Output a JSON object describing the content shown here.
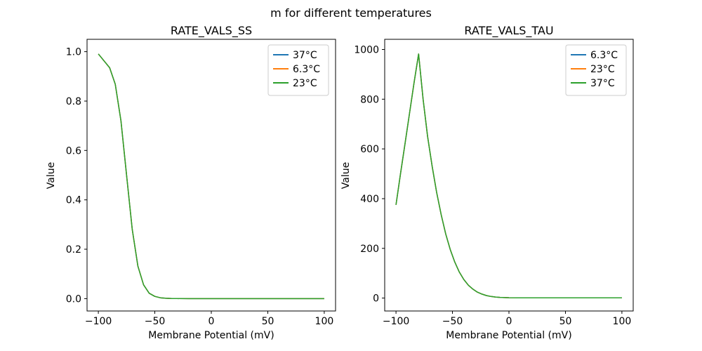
{
  "figure": {
    "title": "m for different temperatures",
    "background": "#ffffff"
  },
  "chart_data": [
    {
      "type": "line",
      "title": "RATE_VALS_SS",
      "xlabel": "Membrane Potential (mV)",
      "ylabel": "Value",
      "xlim": [
        -110,
        110
      ],
      "ylim": [
        -0.05,
        1.05
      ],
      "xticks": [
        -100,
        -50,
        0,
        50,
        100
      ],
      "xtick_labels": [
        "−100",
        "−50",
        "0",
        "50",
        "100"
      ],
      "yticks": [
        0.0,
        0.2,
        0.4,
        0.6,
        0.8,
        1.0
      ],
      "ytick_labels": [
        "0.0",
        "0.2",
        "0.4",
        "0.6",
        "0.8",
        "1.0"
      ],
      "grid": false,
      "legend_loc": "upper right",
      "legend": [
        {
          "label": "37°C",
          "color": "#1f77b4"
        },
        {
          "label": "6.3°C",
          "color": "#ff7f0e"
        },
        {
          "label": "23°C",
          "color": "#2ca02c"
        }
      ],
      "overlapping_series": true,
      "x": [
        -100,
        -90,
        -85,
        -80,
        -75,
        -70,
        -65,
        -60,
        -55,
        -50,
        -45,
        -40,
        -35,
        -30,
        -20,
        -10,
        0,
        50,
        100
      ],
      "series": [
        {
          "name": "37°C",
          "color": "#1f77b4",
          "values": [
            0.991,
            0.935,
            0.868,
            0.72,
            0.5,
            0.28,
            0.132,
            0.056,
            0.022,
            0.009,
            0.0035,
            0.0014,
            0.0006,
            0.0002,
            0,
            0,
            0,
            0,
            0
          ]
        },
        {
          "name": "6.3°C",
          "color": "#ff7f0e",
          "values": [
            0.991,
            0.935,
            0.868,
            0.72,
            0.5,
            0.28,
            0.132,
            0.056,
            0.022,
            0.009,
            0.0035,
            0.0014,
            0.0006,
            0.0002,
            0,
            0,
            0,
            0,
            0
          ]
        },
        {
          "name": "23°C",
          "color": "#2ca02c",
          "values": [
            0.991,
            0.935,
            0.868,
            0.72,
            0.5,
            0.28,
            0.132,
            0.056,
            0.022,
            0.009,
            0.0035,
            0.0014,
            0.0006,
            0.0002,
            0,
            0,
            0,
            0,
            0
          ]
        }
      ]
    },
    {
      "type": "line",
      "title": "RATE_VALS_TAU",
      "xlabel": "Membrane Potential (mV)",
      "ylabel": "Value",
      "xlim": [
        -110,
        110
      ],
      "ylim": [
        -52,
        1041
      ],
      "xticks": [
        -100,
        -50,
        0,
        50,
        100
      ],
      "xtick_labels": [
        "−100",
        "−50",
        "0",
        "50",
        "100"
      ],
      "yticks": [
        0,
        200,
        400,
        600,
        800,
        1000
      ],
      "ytick_labels": [
        "0",
        "200",
        "400",
        "600",
        "800",
        "1000"
      ],
      "grid": false,
      "legend_loc": "upper right",
      "legend": [
        {
          "label": "6.3°C",
          "color": "#1f77b4"
        },
        {
          "label": "23°C",
          "color": "#ff7f0e"
        },
        {
          "label": "37°C",
          "color": "#2ca02c"
        }
      ],
      "overlapping_series": true,
      "x": [
        -100,
        -96,
        -92,
        -88,
        -84,
        -80,
        -76,
        -72,
        -68,
        -64,
        -60,
        -56,
        -52,
        -48,
        -44,
        -40,
        -36,
        -32,
        -28,
        -24,
        -20,
        -16,
        -12,
        -8,
        -4,
        0,
        8,
        20,
        40,
        60,
        80,
        100
      ],
      "series": [
        {
          "name": "6.3°C",
          "color": "#1f77b4",
          "values": [
            375,
            500,
            622,
            744,
            866,
            982,
            800,
            650,
            530,
            425,
            335,
            258,
            196,
            145,
            105,
            75,
            52,
            36,
            24,
            16,
            10,
            6.5,
            4.2,
            2.8,
            1.9,
            1.4,
            1.1,
            1.0,
            0.9,
            0.9,
            0.8,
            0.8
          ]
        },
        {
          "name": "23°C",
          "color": "#ff7f0e",
          "values": [
            375,
            500,
            622,
            744,
            866,
            982,
            800,
            650,
            530,
            425,
            335,
            258,
            196,
            145,
            105,
            75,
            52,
            36,
            24,
            16,
            10,
            6.5,
            4.2,
            2.8,
            1.9,
            1.4,
            1.1,
            1.0,
            0.9,
            0.9,
            0.8,
            0.8
          ]
        },
        {
          "name": "37°C",
          "color": "#2ca02c",
          "values": [
            375,
            500,
            622,
            744,
            866,
            982,
            800,
            650,
            530,
            425,
            335,
            258,
            196,
            145,
            105,
            75,
            52,
            36,
            24,
            16,
            10,
            6.5,
            4.2,
            2.8,
            1.9,
            1.4,
            1.1,
            1.0,
            0.9,
            0.9,
            0.8,
            0.8
          ]
        }
      ]
    }
  ],
  "style": {
    "spine_color": "#000000",
    "legend_edge_color": "#cccccc",
    "legend_face_color": "rgba(255,255,255,0.8)"
  }
}
